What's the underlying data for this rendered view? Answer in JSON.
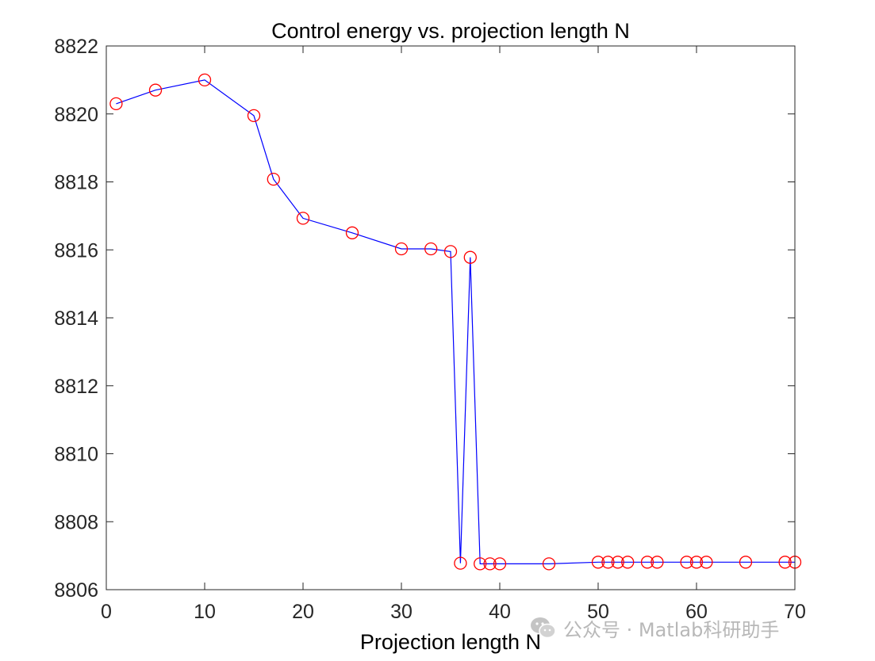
{
  "chart_data": {
    "type": "line",
    "title": "Control energy vs. projection length N",
    "xlabel": "Projection length N",
    "ylabel": "",
    "xlim": [
      0,
      70
    ],
    "ylim": [
      8806,
      8822
    ],
    "xticks": [
      0,
      10,
      20,
      30,
      40,
      50,
      60,
      70
    ],
    "yticks": [
      8806,
      8808,
      8810,
      8812,
      8814,
      8816,
      8818,
      8820,
      8822
    ],
    "grid": false,
    "series": [
      {
        "name": "Control energy",
        "line_color": "#0000ff",
        "marker": "circle",
        "marker_color": "#ff0000",
        "x": [
          1,
          5,
          10,
          15,
          17,
          20,
          25,
          30,
          33,
          35,
          36,
          37,
          38,
          39,
          40,
          45,
          50,
          51,
          52,
          53,
          55,
          56,
          59,
          60,
          61,
          65,
          69,
          70
        ],
        "y": [
          8820.3,
          8820.7,
          8821.0,
          8819.95,
          8818.08,
          8816.93,
          8816.5,
          8816.03,
          8816.03,
          8815.95,
          8806.78,
          8815.78,
          8806.76,
          8806.76,
          8806.76,
          8806.76,
          8806.81,
          8806.81,
          8806.81,
          8806.81,
          8806.81,
          8806.81,
          8806.81,
          8806.81,
          8806.81,
          8806.81,
          8806.81,
          8806.81
        ]
      }
    ]
  },
  "watermark": {
    "icon": "wechat-icon",
    "text": "公众号 · Matlab科研助手"
  }
}
